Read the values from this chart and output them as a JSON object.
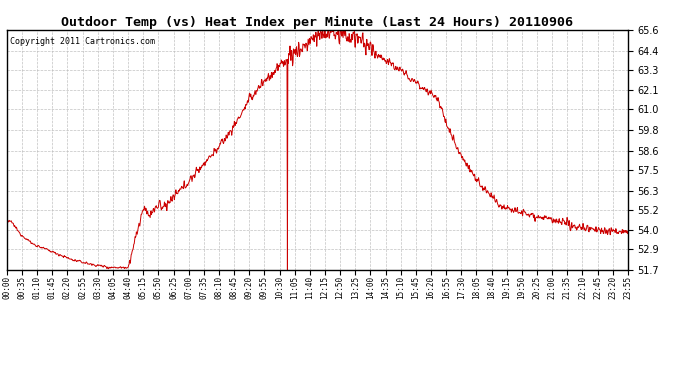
{
  "title": "Outdoor Temp (vs) Heat Index per Minute (Last 24 Hours) 20110906",
  "copyright": "Copyright 2011 Cartronics.com",
  "line_color": "#cc0000",
  "background_color": "#ffffff",
  "grid_color": "#bbbbbb",
  "ylim": [
    51.7,
    65.6
  ],
  "yticks": [
    51.7,
    52.9,
    54.0,
    55.2,
    56.3,
    57.5,
    58.6,
    59.8,
    61.0,
    62.1,
    63.3,
    64.4,
    65.6
  ],
  "xtick_labels": [
    "00:00",
    "00:35",
    "01:10",
    "01:45",
    "02:20",
    "02:55",
    "03:30",
    "04:05",
    "04:40",
    "05:15",
    "05:50",
    "06:25",
    "07:00",
    "07:35",
    "08:10",
    "08:45",
    "09:20",
    "09:55",
    "10:30",
    "11:05",
    "11:40",
    "12:15",
    "12:50",
    "13:25",
    "14:00",
    "14:35",
    "15:10",
    "15:45",
    "16:20",
    "16:55",
    "17:30",
    "18:05",
    "18:40",
    "19:15",
    "19:50",
    "20:25",
    "21:00",
    "21:35",
    "22:10",
    "22:45",
    "23:20",
    "23:55"
  ],
  "figsize": [
    6.9,
    3.75
  ],
  "dpi": 100
}
